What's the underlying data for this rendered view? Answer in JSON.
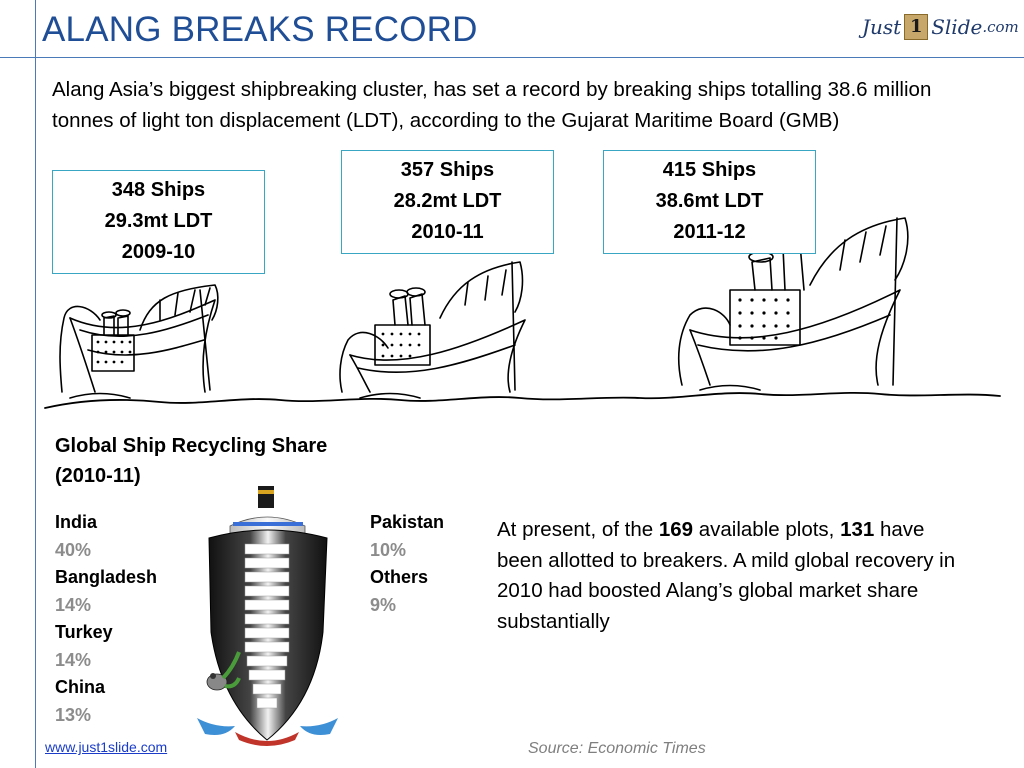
{
  "slide": {
    "title": "ALANG BREAKS RECORD",
    "logo": {
      "part1": "Just",
      "part2": "1",
      "part3": "Slide",
      "part4": ".com"
    },
    "intro": "Alang Asia’s biggest shipbreaking cluster, has set a record by breaking ships totalling 38.6 million tonnes of light ton displacement (LDT), according to the Gujarat Maritime Board (GMB)"
  },
  "stats": [
    {
      "ships": "348 Ships",
      "ldt": "29.3mt LDT",
      "year": "2009-10"
    },
    {
      "ships": "357 Ships",
      "ldt": "28.2mt LDT",
      "year": "2010-11"
    },
    {
      "ships": "415 Ships",
      "ldt": "38.6mt LDT",
      "year": "2011-12"
    }
  ],
  "share": {
    "title": "Global Ship Recycling Share (2010-11)",
    "left": [
      {
        "country": "India",
        "pct": "40%"
      },
      {
        "country": "Bangladesh",
        "pct": "14%"
      },
      {
        "country": "Turkey",
        "pct": "14%"
      },
      {
        "country": "China",
        "pct": "13%"
      }
    ],
    "right": [
      {
        "country": "Pakistan",
        "pct": "10%"
      },
      {
        "country": "Others",
        "pct": "9%"
      }
    ]
  },
  "plots": {
    "pre": "At present, of the ",
    "available": "169",
    "mid": " available plots, ",
    "allotted": "131",
    "post": " have been allotted to breakers. A mild global recovery in 2010 had boosted Alang’s global market share substantially"
  },
  "footer": {
    "link": "www.just1slide.com",
    "source": "Source: Economic Times"
  },
  "colors": {
    "accent": "#1f4e96",
    "box_border": "#39a7c4",
    "pct_gray": "#8c8c8c"
  }
}
